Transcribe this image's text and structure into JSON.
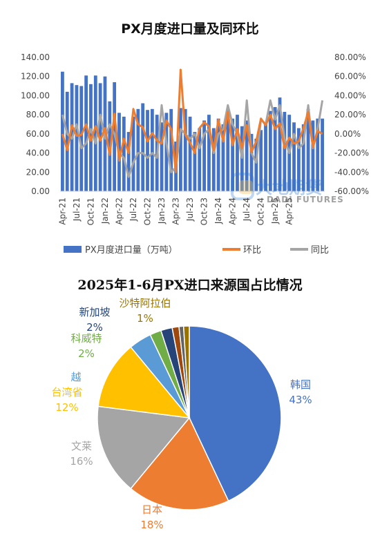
{
  "charts": {
    "top": {
      "title": "PX月度进口量及同环比",
      "left_ticks": [
        "140.00",
        "120.00",
        "100.00",
        "80.00",
        "60.00",
        "40.00",
        "20.00",
        "0.00"
      ],
      "right_ticks": [
        "80.00%",
        "60.00%",
        "40.00%",
        "20.00%",
        "0.00%",
        "-20.00%",
        "-40.00%",
        "-60.00%"
      ],
      "x_ticks": [
        "Apr-21",
        "Jul-21",
        "Oct-21",
        "Jan-22",
        "Apr-22",
        "Jul-22",
        "Oct-22",
        "Jan-23",
        "Apr-23",
        "Jul-23",
        "Oct-23",
        "Jan-24",
        "Apr-24",
        "Jul-24",
        "Oct-24",
        "Jan-25",
        "Apr-25"
      ],
      "legend": [
        "PX月度进口量（万吨）",
        "环比",
        "同比"
      ],
      "watermark": {
        "cn": "大地期货",
        "en": "DADI FUTURES"
      }
    },
    "bottom": {
      "title": "2025年1-6月PX进口来源国占比情况"
    }
  },
  "chart_data": [
    {
      "type": "bar+line",
      "title": "PX月度进口量及同环比",
      "series": [
        {
          "name": "PX月度进口量（万吨）",
          "axis": "left",
          "kind": "bar",
          "values": [
            125,
            104,
            113,
            111,
            110,
            121,
            112,
            121,
            113,
            120,
            94,
            114,
            82,
            78,
            62,
            78,
            86,
            92,
            85,
            86,
            80,
            72,
            82,
            86,
            52,
            87,
            86,
            78,
            62,
            66,
            74,
            80,
            66,
            76,
            70,
            86,
            76,
            80,
            68,
            74,
            60,
            55,
            64,
            70,
            84,
            88,
            98,
            83,
            80,
            72,
            66,
            70,
            86,
            74,
            76,
            76
          ]
        },
        {
          "name": "环比",
          "axis": "right",
          "kind": "line",
          "values": [
            0,
            -17,
            9,
            -2,
            -1,
            10,
            -7,
            8,
            -7,
            6,
            -22,
            21,
            -28,
            -5,
            -20,
            26,
            10,
            7,
            -8,
            1,
            -7,
            -10,
            14,
            5,
            -40,
            67,
            -1,
            -9,
            -20,
            6,
            12,
            8,
            -17,
            15,
            -8,
            23,
            -12,
            5,
            -15,
            9,
            -19,
            -8,
            16,
            9,
            20,
            5,
            11,
            -15,
            -4,
            -10,
            -8,
            6,
            23,
            -14,
            3,
            0
          ]
        },
        {
          "name": "同比",
          "axis": "right",
          "kind": "line",
          "values": [
            20,
            0,
            -5,
            10,
            -15,
            -10,
            5,
            -10,
            20,
            -5,
            10,
            0,
            -20,
            -25,
            -45,
            -30,
            -20,
            -20,
            -25,
            -20,
            -25,
            30,
            -10,
            -40,
            -35,
            5,
            0,
            -5,
            0,
            -15,
            0,
            5,
            -20,
            0,
            5,
            30,
            10,
            0,
            -25,
            35,
            -20,
            -30,
            15,
            10,
            35,
            15,
            30,
            -5,
            -20,
            0,
            -15,
            -10,
            30,
            -15,
            5,
            35
          ]
        }
      ],
      "x_tick_labels": [
        "Apr-21",
        "Jul-21",
        "Oct-21",
        "Jan-22",
        "Apr-22",
        "Jul-22",
        "Oct-22",
        "Jan-23",
        "Apr-23",
        "Jul-23",
        "Oct-23",
        "Jan-24",
        "Apr-24",
        "Jul-24",
        "Oct-24",
        "Jan-25",
        "Apr-25"
      ],
      "ylim_left": [
        0,
        140
      ],
      "ylim_right": [
        -60,
        80
      ],
      "colors": {
        "bar": "#4472C4",
        "mom": "#ED7D31",
        "yoy": "#A5A5A5"
      },
      "legend_position": "bottom",
      "grid": false
    },
    {
      "type": "pie",
      "title": "2025年1-6月PX进口来源国占比情况",
      "slices": [
        {
          "label": "韩国",
          "value": 43,
          "display": "43%",
          "color": "#4472C4"
        },
        {
          "label": "日本",
          "value": 18,
          "display": "18%",
          "color": "#ED7D31"
        },
        {
          "label": "文莱",
          "value": 16,
          "display": "16%",
          "color": "#A5A5A5"
        },
        {
          "label": "台湾省",
          "value": 12,
          "display": "12%",
          "color": "#FFC000"
        },
        {
          "label": "越",
          "value": 4,
          "display": "",
          "color": "#5B9BD5"
        },
        {
          "label": "科威特",
          "value": 2,
          "display": "2%",
          "color": "#70AD47"
        },
        {
          "label": "新加坡",
          "value": 2,
          "display": "2%",
          "color": "#264478"
        },
        {
          "label": "",
          "value": 1.2,
          "display": "",
          "color": "#9E480E"
        },
        {
          "label": "",
          "value": 0.8,
          "display": "",
          "color": "#636363"
        },
        {
          "label": "沙特阿拉伯",
          "value": 1,
          "display": "1%",
          "color": "#997300"
        }
      ]
    }
  ]
}
